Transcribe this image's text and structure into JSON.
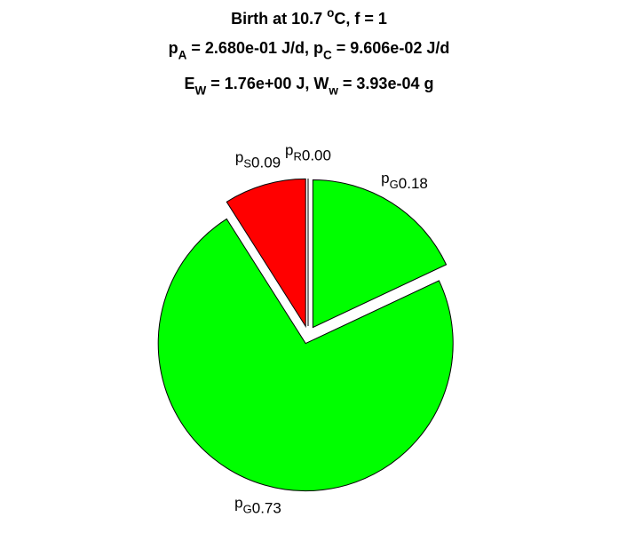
{
  "chart_data": {
    "type": "pie",
    "title": [
      [
        {
          "text": "Birth at 10.7 "
        },
        {
          "sup": "o"
        },
        {
          "text": "C, f = 1"
        }
      ],
      [
        {
          "text": "p"
        },
        {
          "sub": "A"
        },
        {
          "text": " = 2.680e-01 J/d, p"
        },
        {
          "sub": "C"
        },
        {
          "text": " = 9.606e-02 J/d"
        }
      ],
      [
        {
          "text": "E"
        },
        {
          "sub": "W"
        },
        {
          "text": " = 1.76e+00 J, W"
        },
        {
          "sub": "w"
        },
        {
          "text": " = 3.93e-04 g"
        }
      ]
    ],
    "explode": true,
    "slices": [
      {
        "symbol": "p",
        "sub": "G",
        "value": 0.18,
        "label": "0.18",
        "color": "#00ff00"
      },
      {
        "symbol": "p",
        "sub": "G",
        "value": 0.73,
        "label": "0.73",
        "color": "#00ff00"
      },
      {
        "symbol": "p",
        "sub": "S",
        "value": 0.09,
        "label": "0.09",
        "color": "#ff0000"
      },
      {
        "symbol": "p",
        "sub": "R",
        "value": 0,
        "label": "0.00",
        "color": "#0000ff"
      }
    ]
  }
}
